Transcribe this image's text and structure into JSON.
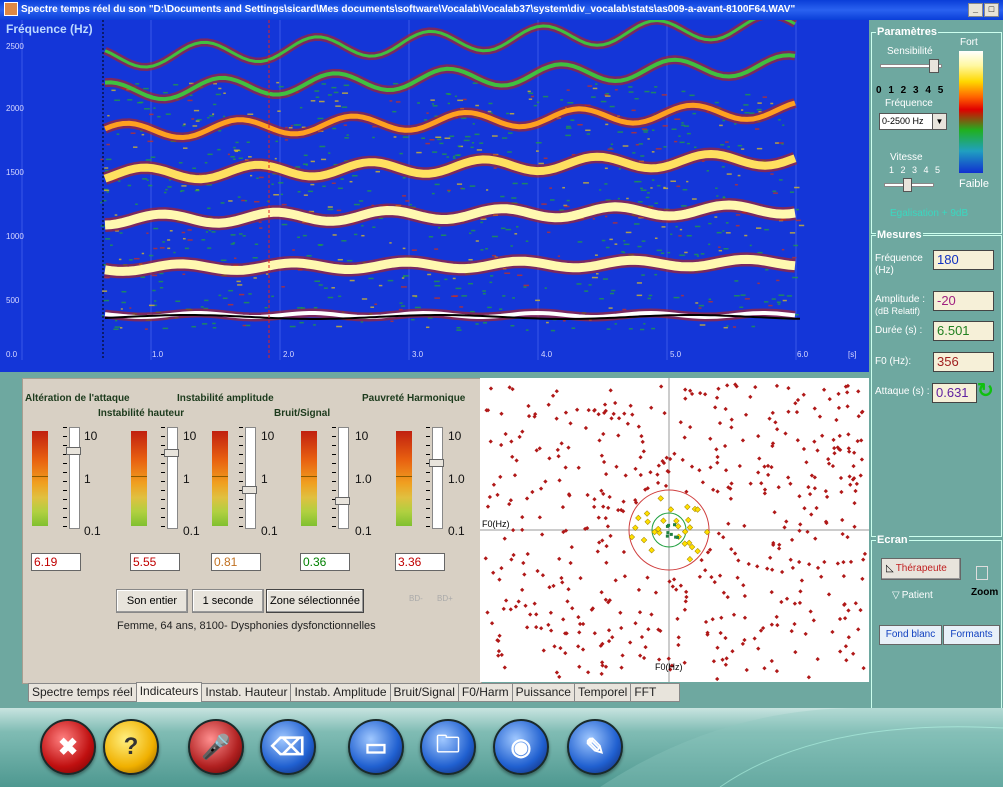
{
  "window": {
    "title": "Spectre temps réel du son \"D:\\Documents and Settings\\sicard\\Mes documents\\software\\Vocalab\\Vocalab37\\system\\div_vocalab\\stats\\as009-a-avant-8100F64.WAV\"",
    "btn_min": "_",
    "btn_max": "□"
  },
  "spectrogram": {
    "ylabel": "Fréquence (Hz)",
    "yticks": [
      "2500",
      "2000",
      "1500",
      "1000",
      "500"
    ],
    "xticks": [
      "0.0",
      "1.0",
      "2.0",
      "3.0",
      "4.0",
      "5.0",
      "6.0"
    ],
    "xunit": "[s]"
  },
  "indicators": {
    "titles": {
      "attaque": "Altération de l'attaque",
      "hauteur": "Instabilité hauteur",
      "amplitude": "Instabilité amplitude",
      "bruit": "Bruit/Signal",
      "harmonique": "Pauvreté Harmonique"
    },
    "gauges": [
      {
        "top": "10",
        "mid": "1",
        "bottom": "0.1",
        "value": "6.19",
        "color": "#c00000"
      },
      {
        "top": "10",
        "mid": "1",
        "bottom": "0.1",
        "value": "5.55",
        "color": "#c00000"
      },
      {
        "top": "10",
        "mid": "1",
        "bottom": "0.1",
        "value": "0.81",
        "color": "#c07020"
      },
      {
        "top": "10",
        "mid": "1.0",
        "bottom": "0.1",
        "value": "0.36",
        "color": "#008000"
      },
      {
        "top": "10",
        "mid": "1.0",
        "bottom": "0.1",
        "value": "3.36",
        "color": "#c00000"
      }
    ],
    "buttons": {
      "son_entier": "Son entier",
      "une_seconde": "1 seconde",
      "zone": "Zone sélectionnée"
    },
    "bd_minus": "BD-",
    "bd_plus": "BD+",
    "patient_info": "Femme, 64 ans, 8100- Dysphonies dysfonctionnelles"
  },
  "scatter": {
    "xaxis_label": "F0(Hz)",
    "yaxis_label": "F0(Hz)"
  },
  "tabs": [
    "Spectre temps réel",
    "Indicateurs",
    "Instab. Hauteur",
    "Instab. Amplitude",
    "Bruit/Signal",
    "F0/Harm",
    "Puissance",
    "Temporel",
    "FFT"
  ],
  "active_tab": 1,
  "parametres": {
    "title": "Paramètres",
    "sensibilite": "Sensibilité",
    "sens_scale": "0 1 2 3 4 5",
    "frequence": "Fréquence",
    "freq_value": "0-2500 Hz",
    "vitesse": "Vitesse",
    "vit_scale": "1 2 3 4 5",
    "fort": "Fort",
    "faible": "Faible",
    "egalisation": "Egalisation + 9dB"
  },
  "mesures": {
    "title": "Mesures",
    "frequence_label": "Fréquence",
    "frequence_unit": "(Hz)",
    "frequence_value": "180",
    "amplitude_label": "Amplitude :",
    "amplitude_unit": "(dB Relatif)",
    "amplitude_value": "-20",
    "duree_label": "Durée (s) :",
    "duree_value": "6.501",
    "f0_label": "F0 (Hz):",
    "f0_value": "356",
    "attaque_label": "Attaque (s) :",
    "attaque_value": "0.631"
  },
  "ecran": {
    "title": "Ecran",
    "therapeute": "Thérapeute",
    "patient": "Patient",
    "zoom": "Zoom",
    "fond_blanc": "Fond blanc",
    "formants": "Formants"
  },
  "dock": [
    "close-icon",
    "help-icon",
    "microphone-icon",
    "eraser-icon",
    "cassette-icon",
    "folder-icon",
    "speaker-icon",
    "edit-document-icon"
  ]
}
